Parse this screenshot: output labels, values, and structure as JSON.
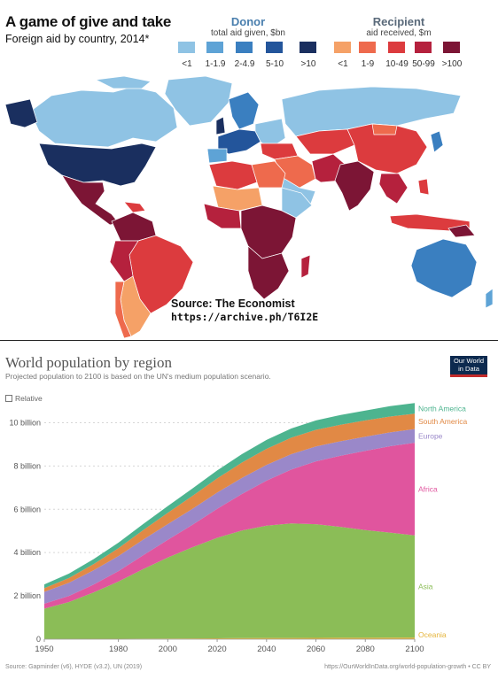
{
  "aid_map": {
    "title": "A game of give and take",
    "subtitle": "Foreign aid by country, 2014*",
    "donor": {
      "heading": "Donor",
      "subheading": "total aid given, $bn",
      "bins": [
        {
          "label": "<1",
          "color": "#8fc3e4"
        },
        {
          "label": "1-1.9",
          "color": "#5ea3d6"
        },
        {
          "label": "2-4.9",
          "color": "#3a7fc0"
        },
        {
          "label": "5-10",
          "color": "#23559b"
        },
        {
          "label": ">10",
          "color": "#1a2f5f"
        }
      ]
    },
    "recipient": {
      "heading": "Recipient",
      "subheading": "aid received, $m",
      "bins": [
        {
          "label": "<1",
          "color": "#f5a167"
        },
        {
          "label": "1-9",
          "color": "#ee6a4d"
        },
        {
          "label": "10-49",
          "color": "#dc3b3e"
        },
        {
          "label": "50-99",
          "color": "#b5213d"
        },
        {
          "label": ">100",
          "color": "#7c1535"
        }
      ]
    },
    "source_line1": "Source: The Economist",
    "source_line2": "https://archive.ph/T6I2E"
  },
  "population": {
    "title": "World population by region",
    "subtitle": "Projected population to 2100 is based on the UN's medium population scenario.",
    "relative_label": "Relative",
    "logo_line1": "Our World",
    "logo_line2": "in Data",
    "footer_left": "Source: Gapminder (v6), HYDE (v3.2), UN (2019)",
    "footer_right": "https://OurWorldInData.org/world-population-growth • CC BY"
  },
  "chart_data": {
    "type": "area",
    "title": "World population by region",
    "stacked": true,
    "ylabel": "",
    "xlabel": "",
    "x": [
      1950,
      1960,
      1970,
      1980,
      1990,
      2000,
      2010,
      2020,
      2030,
      2040,
      2050,
      2060,
      2070,
      2080,
      2090,
      2100
    ],
    "ylim": [
      0,
      11000000000
    ],
    "xlim": [
      1950,
      2100
    ],
    "y_ticks": [
      {
        "value": 0,
        "label": "0"
      },
      {
        "value": 2000000000,
        "label": "2 billion"
      },
      {
        "value": 4000000000,
        "label": "4 billion"
      },
      {
        "value": 6000000000,
        "label": "6 billion"
      },
      {
        "value": 8000000000,
        "label": "8 billion"
      },
      {
        "value": 10000000000,
        "label": "10 billion"
      }
    ],
    "x_ticks": [
      {
        "value": 1950,
        "label": "1950"
      },
      {
        "value": 1980,
        "label": "1980"
      },
      {
        "value": 2000,
        "label": "2000"
      },
      {
        "value": 2020,
        "label": "2020"
      },
      {
        "value": 2040,
        "label": "2040"
      },
      {
        "value": 2060,
        "label": "2060"
      },
      {
        "value": 2080,
        "label": "2080"
      },
      {
        "value": 2100,
        "label": "2100"
      }
    ],
    "grid": "horizontal-dotted",
    "legend": "right-inline",
    "series": [
      {
        "name": "Oceania",
        "color": "#e5b43a",
        "values": [
          12700000,
          15800000,
          19700000,
          22900000,
          27000000,
          31200000,
          36400000,
          42700000,
          48600000,
          54000000,
          57400000,
          62000000,
          66000000,
          69000000,
          72000000,
          74700000
        ]
      },
      {
        "name": "Asia",
        "color": "#8bbd57",
        "values": [
          1400000000,
          1700000000,
          2140000000,
          2640000000,
          3210000000,
          3740000000,
          4210000000,
          4640000000,
          4970000000,
          5190000000,
          5290000000,
          5250000000,
          5120000000,
          4970000000,
          4850000000,
          4720000000
        ]
      },
      {
        "name": "Africa",
        "color": "#e0559e",
        "values": [
          228000000,
          285000000,
          366000000,
          481000000,
          635000000,
          818000000,
          1040000000,
          1340000000,
          1690000000,
          2080000000,
          2490000000,
          2900000000,
          3290000000,
          3660000000,
          3990000000,
          4280000000
        ]
      },
      {
        "name": "Europe",
        "color": "#9a88c9",
        "values": [
          549000000,
          605000000,
          657000000,
          694000000,
          721000000,
          726000000,
          736000000,
          748000000,
          741000000,
          729000000,
          710000000,
          690000000,
          670000000,
          655000000,
          640000000,
          630000000
        ]
      },
      {
        "name": "South America",
        "color": "#e18945",
        "values": [
          169000000,
          220000000,
          287000000,
          363000000,
          442000000,
          522000000,
          596000000,
          654000000,
          706000000,
          741000000,
          762000000,
          768000000,
          762000000,
          749000000,
          731000000,
          712000000
        ]
      },
      {
        "name": "North America",
        "color": "#4db48f",
        "values": [
          172000000,
          205000000,
          231000000,
          254000000,
          280000000,
          313000000,
          343000000,
          369000000,
          391000000,
          410000000,
          425000000,
          437000000,
          447000000,
          456000000,
          483000000,
          491000000
        ]
      }
    ]
  }
}
